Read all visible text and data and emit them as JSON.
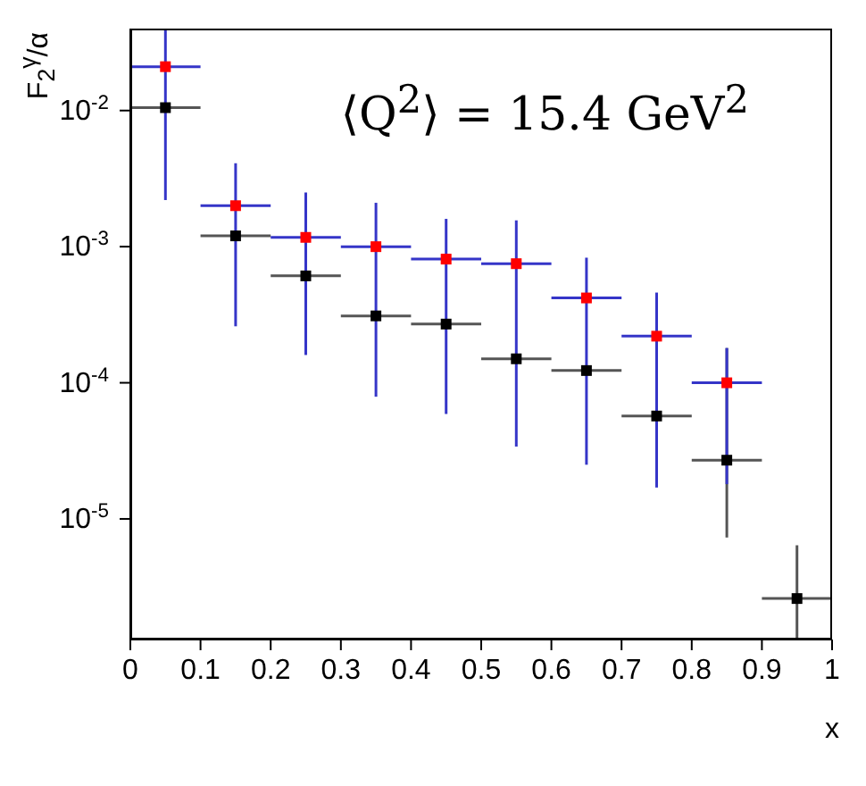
{
  "chart_data": {
    "type": "scatter",
    "ylabel": "F$_{2}$$^{γ}$/α",
    "xlabel": "x",
    "annotations": [
      "⟨Q$^{2}$⟩ = 15.4 GeV$^{2}$"
    ],
    "xlim": [
      0,
      1
    ],
    "xticks": [
      0,
      0.1,
      0.2,
      0.3,
      0.4,
      0.5,
      0.6,
      0.7,
      0.8,
      0.9,
      1
    ],
    "ylim": [
      1.3e-06,
      0.04
    ],
    "yticks": [
      {
        "value": 1e-05,
        "label": "10$^{-5}$"
      },
      {
        "value": 0.0001,
        "label": "10$^{-4}$"
      },
      {
        "value": 0.001,
        "label": "10$^{-3}$"
      },
      {
        "value": 0.01,
        "label": "10$^{-2}$"
      }
    ],
    "log": "y",
    "grid": false,
    "legend": false,
    "marker": "square",
    "series": [
      {
        "color": "#ff0000",
        "x": [
          0.05,
          0.15,
          0.25,
          0.35,
          0.45,
          0.55,
          0.65,
          0.75,
          0.85
        ],
        "values": [
          0.021,
          0.002,
          0.00117,
          0.001,
          0.00081,
          0.00075,
          0.00042,
          0.00022,
          0.0001
        ],
        "xerrors": [
          0.05,
          0.05,
          0.05,
          0.05,
          0.05,
          0.05,
          0.05,
          0.05,
          0.05
        ],
        "errors": [
          [
            0.0022,
            0.04
          ],
          [
            0.00026,
            0.0041
          ],
          [
            0.00016,
            0.0025
          ],
          [
            7.9e-05,
            0.0021
          ],
          [
            5.9e-05,
            0.0016
          ],
          [
            3.4e-05,
            0.00156
          ],
          [
            2.5e-05,
            0.00083
          ],
          [
            1.7e-05,
            0.00046
          ],
          [
            1.8e-05,
            0.00018
          ]
        ]
      },
      {
        "color": "#000000",
        "x": [
          0.05,
          0.15,
          0.25,
          0.35,
          0.45,
          0.55,
          0.65,
          0.75,
          0.85,
          0.95
        ],
        "values": [
          0.0105,
          0.0012,
          0.00061,
          0.00031,
          0.00027,
          0.00015,
          0.000123,
          5.7e-05,
          2.7e-05,
          2.6e-06
        ],
        "xerrors": [
          0.05,
          0.05,
          0.05,
          0.05,
          0.05,
          0.05,
          0.05,
          0.05,
          0.05,
          0.05
        ],
        "errors": [
          null,
          null,
          null,
          null,
          null,
          null,
          null,
          null,
          [
            7.3e-06,
            0.00018
          ],
          [
            1.3e-06,
            6.4e-06
          ]
        ]
      }
    ]
  }
}
